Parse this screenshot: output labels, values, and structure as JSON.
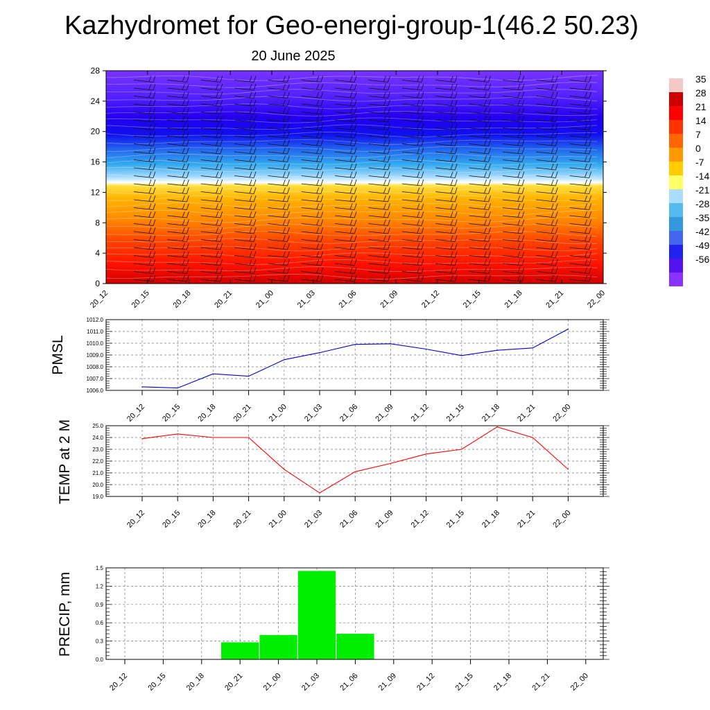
{
  "figure": {
    "title": "Kazhydromet for Geo-energi-group-1(46.2 50.23)",
    "subtitle": "20 June 2025"
  },
  "chart_data": [
    {
      "type": "heatmap",
      "ylim": [
        0,
        28
      ],
      "y_ticks": [
        0,
        4,
        8,
        12,
        16,
        20,
        24,
        28
      ],
      "x_ticks": [
        "20_12",
        "20_15",
        "20_18",
        "20_21",
        "21_00",
        "21_03",
        "21_06",
        "21_09",
        "21_12",
        "21_15",
        "21_18",
        "21_21",
        "22_00"
      ],
      "colorbar": {
        "labels": [
          "35",
          "28",
          "21",
          "14",
          "7",
          "0",
          "-7",
          "-14",
          "-21",
          "-28",
          "-35",
          "-42",
          "-49",
          "-56"
        ],
        "colors": [
          "#f5c8c8",
          "#cc0000",
          "#ff0000",
          "#ff3300",
          "#ff6600",
          "#ff9900",
          "#ffcc00",
          "#ffff66",
          "#aaddff",
          "#55bbee",
          "#3399dd",
          "#4466ee",
          "#2222ee",
          "#5511ee",
          "#8833ff"
        ]
      },
      "grid": false,
      "description_values": {
        "levels": [
          0,
          4,
          8,
          12,
          13,
          14,
          16,
          18,
          20,
          22,
          24,
          28
        ],
        "temperature": [
          30,
          25,
          15,
          2,
          -8,
          -14,
          -25,
          -35,
          -48,
          -55,
          -54,
          -50
        ]
      }
    },
    {
      "type": "line",
      "ylabel": "PMSL",
      "x": [
        "20_12",
        "20_15",
        "20_18",
        "20_21",
        "21_00",
        "21_03",
        "21_06",
        "21_09",
        "21_12",
        "21_15",
        "21_18",
        "21_21",
        "22_00"
      ],
      "series": [
        {
          "values": [
            1006.3,
            1006.2,
            1007.4,
            1007.2,
            1008.6,
            1009.2,
            1009.9,
            1009.95,
            1009.5,
            1008.95,
            1009.4,
            1009.6,
            1011.2
          ]
        }
      ],
      "ylim": [
        1006.0,
        1012.0
      ],
      "y_ticks": [
        "1006.0",
        "1007.0",
        "1008.0",
        "1009.0",
        "1010.0",
        "1011.0",
        "1012.0"
      ],
      "color": "#0000cc",
      "grid": true
    },
    {
      "type": "line",
      "ylabel": "TEMP at 2 M",
      "x": [
        "20_12",
        "20_15",
        "20_18",
        "20_21",
        "21_00",
        "21_03",
        "21_06",
        "21_09",
        "21_12",
        "21_15",
        "21_18",
        "21_21",
        "22_00"
      ],
      "series": [
        {
          "values": [
            23.9,
            24.3,
            24.0,
            24.0,
            21.3,
            19.3,
            21.1,
            21.8,
            22.6,
            23.0,
            24.9,
            24.0,
            21.3
          ]
        }
      ],
      "ylim": [
        19.0,
        25.0
      ],
      "y_ticks": [
        "19.0",
        "20.0",
        "21.0",
        "22.0",
        "23.0",
        "24.0",
        "25.0"
      ],
      "color": "#ff0000",
      "grid": true
    },
    {
      "type": "bar",
      "ylabel": "PRECIP, mm",
      "categories": [
        "20_12",
        "20_15",
        "20_18",
        "20_21",
        "21_00",
        "21_03",
        "21_06",
        "21_09",
        "21_12",
        "21_15",
        "21_18",
        "21_21",
        "22_00"
      ],
      "values": [
        0,
        0,
        0,
        0.28,
        0.4,
        1.45,
        0.42,
        0,
        0,
        0,
        0,
        0,
        0
      ],
      "ylim": [
        0,
        1.5
      ],
      "y_ticks": [
        "0.0",
        "0.3",
        "0.6",
        "0.9",
        "1.2",
        "1.5"
      ],
      "color": "#00ee00",
      "grid": true
    }
  ]
}
